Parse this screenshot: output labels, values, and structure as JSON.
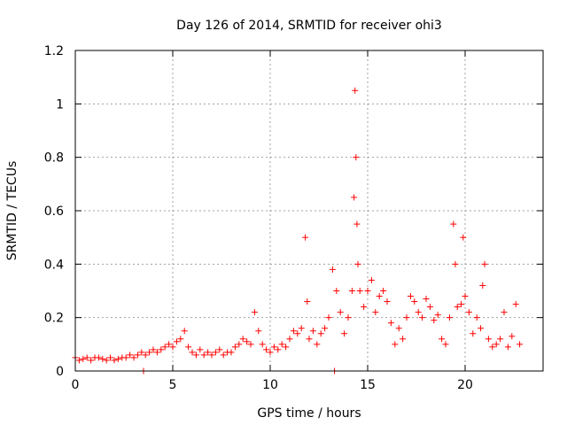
{
  "chart_data": {
    "type": "scatter",
    "title": "Day 126 of 2014, SRMTID for receiver ohi3",
    "xlabel": "GPS time / hours",
    "ylabel": "SRMTID / TECUs",
    "xlim": [
      0,
      24
    ],
    "ylim": [
      0,
      1.2
    ],
    "x_ticks": [
      0,
      5,
      10,
      15,
      20
    ],
    "x_tick_labels": [
      "0",
      "5",
      "10",
      "15",
      "20"
    ],
    "y_ticks": [
      0,
      0.2,
      0.4,
      0.6,
      0.8,
      1.0,
      1.2
    ],
    "y_tick_labels": [
      "0",
      "0.2",
      "0.4",
      "0.6",
      "0.8",
      "1",
      "1.2"
    ],
    "grid": true,
    "marker": "+",
    "color": "#ff0000",
    "series": [
      {
        "name": "ohi3",
        "x": [
          0.0,
          0.2,
          0.4,
          0.6,
          0.8,
          1.0,
          1.2,
          1.4,
          1.6,
          1.8,
          2.0,
          2.2,
          2.4,
          2.6,
          2.8,
          3.0,
          3.2,
          3.4,
          3.5,
          3.6,
          3.8,
          4.0,
          4.2,
          4.4,
          4.6,
          4.8,
          5.0,
          5.2,
          5.4,
          5.6,
          5.8,
          6.0,
          6.2,
          6.4,
          6.6,
          6.8,
          7.0,
          7.2,
          7.4,
          7.6,
          7.8,
          8.0,
          8.2,
          8.4,
          8.6,
          8.8,
          9.0,
          9.2,
          9.4,
          9.6,
          9.8,
          10.0,
          10.2,
          10.4,
          10.6,
          10.8,
          11.0,
          11.2,
          11.4,
          11.6,
          11.8,
          11.9,
          12.0,
          12.2,
          12.4,
          12.6,
          12.8,
          13.0,
          13.2,
          13.3,
          13.4,
          13.6,
          13.8,
          14.0,
          14.2,
          14.3,
          14.35,
          14.4,
          14.45,
          14.5,
          14.6,
          14.8,
          15.0,
          15.2,
          15.4,
          15.6,
          15.8,
          16.0,
          16.2,
          16.4,
          16.6,
          16.8,
          17.0,
          17.2,
          17.4,
          17.6,
          17.8,
          18.0,
          18.2,
          18.4,
          18.6,
          18.8,
          19.0,
          19.2,
          19.4,
          19.5,
          19.6,
          19.8,
          19.9,
          20.0,
          20.2,
          20.4,
          20.6,
          20.8,
          20.9,
          21.0,
          21.2,
          21.4,
          21.6,
          21.8,
          22.0,
          22.2,
          22.4,
          22.6,
          22.8
        ],
        "y": [
          0.05,
          0.04,
          0.045,
          0.05,
          0.04,
          0.05,
          0.05,
          0.045,
          0.04,
          0.05,
          0.04,
          0.045,
          0.05,
          0.05,
          0.06,
          0.05,
          0.06,
          0.07,
          0.0,
          0.06,
          0.07,
          0.08,
          0.07,
          0.08,
          0.09,
          0.1,
          0.09,
          0.11,
          0.12,
          0.15,
          0.09,
          0.07,
          0.06,
          0.08,
          0.06,
          0.07,
          0.06,
          0.07,
          0.08,
          0.06,
          0.07,
          0.07,
          0.09,
          0.1,
          0.12,
          0.11,
          0.1,
          0.22,
          0.15,
          0.1,
          0.08,
          0.07,
          0.09,
          0.08,
          0.1,
          0.09,
          0.12,
          0.15,
          0.14,
          0.16,
          0.5,
          0.26,
          0.12,
          0.15,
          0.1,
          0.14,
          0.16,
          0.2,
          0.38,
          0.0,
          0.3,
          0.22,
          0.14,
          0.2,
          0.3,
          0.65,
          1.05,
          0.8,
          0.55,
          0.4,
          0.3,
          0.24,
          0.3,
          0.34,
          0.22,
          0.28,
          0.3,
          0.26,
          0.18,
          0.1,
          0.16,
          0.12,
          0.2,
          0.28,
          0.26,
          0.22,
          0.2,
          0.27,
          0.24,
          0.19,
          0.21,
          0.12,
          0.1,
          0.2,
          0.55,
          0.4,
          0.24,
          0.25,
          0.5,
          0.28,
          0.22,
          0.14,
          0.2,
          0.16,
          0.32,
          0.4,
          0.12,
          0.09,
          0.1,
          0.12,
          0.22,
          0.09,
          0.13,
          0.25,
          0.1
        ]
      }
    ]
  }
}
